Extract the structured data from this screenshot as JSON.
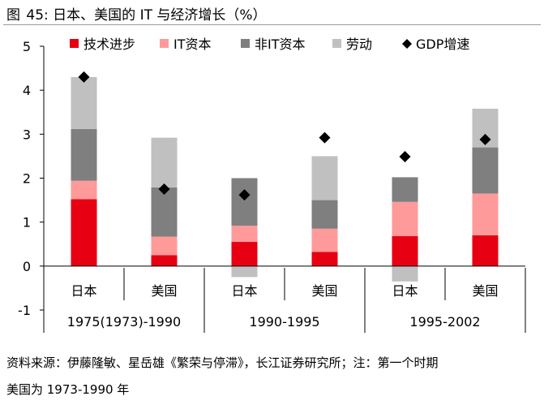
{
  "title": {
    "label": "图",
    "number": "45:",
    "text": "日本、美国的 IT 与经济增长（%）"
  },
  "source_note": {
    "line1": "资料来源：伊藤隆敏、星岳雄《繁荣与停滞》，长江证券研究所；注：第一个时期",
    "line2": "美国为 1973-1990 年"
  },
  "chart_data": {
    "type": "bar",
    "stacked": true,
    "ylim": [
      -1,
      5
    ],
    "yticks": [
      "-1",
      "0",
      "1",
      "2",
      "3",
      "4",
      "5"
    ],
    "ytick_values": [
      -1,
      0,
      1,
      2,
      3,
      4,
      5
    ],
    "categories": [
      "日本",
      "美国",
      "日本",
      "美国",
      "日本",
      "美国"
    ],
    "periods": [
      "1975(1973)-1990",
      "1990-1995",
      "1995-2002"
    ],
    "series": [
      {
        "name": "技术进步",
        "color": "#e60012",
        "values": [
          1.52,
          0.25,
          0.55,
          0.32,
          0.68,
          0.7
        ]
      },
      {
        "name": "IT资本",
        "color": "#ff9a9a",
        "values": [
          0.42,
          0.42,
          0.37,
          0.53,
          0.78,
          0.95
        ]
      },
      {
        "name": "非IT资本",
        "color": "#7f7f7f",
        "values": [
          1.18,
          1.12,
          1.08,
          0.65,
          0.56,
          1.05
        ]
      },
      {
        "name": "劳动",
        "color": "#c0c0c0",
        "values": [
          1.18,
          1.13,
          -0.25,
          1.0,
          -0.35,
          0.88
        ]
      }
    ],
    "gdp": {
      "name": "GDP增速",
      "color": "#000000",
      "values": [
        4.3,
        1.75,
        1.62,
        2.92,
        2.49,
        2.88
      ]
    },
    "legend_position": "top",
    "grid": false
  }
}
